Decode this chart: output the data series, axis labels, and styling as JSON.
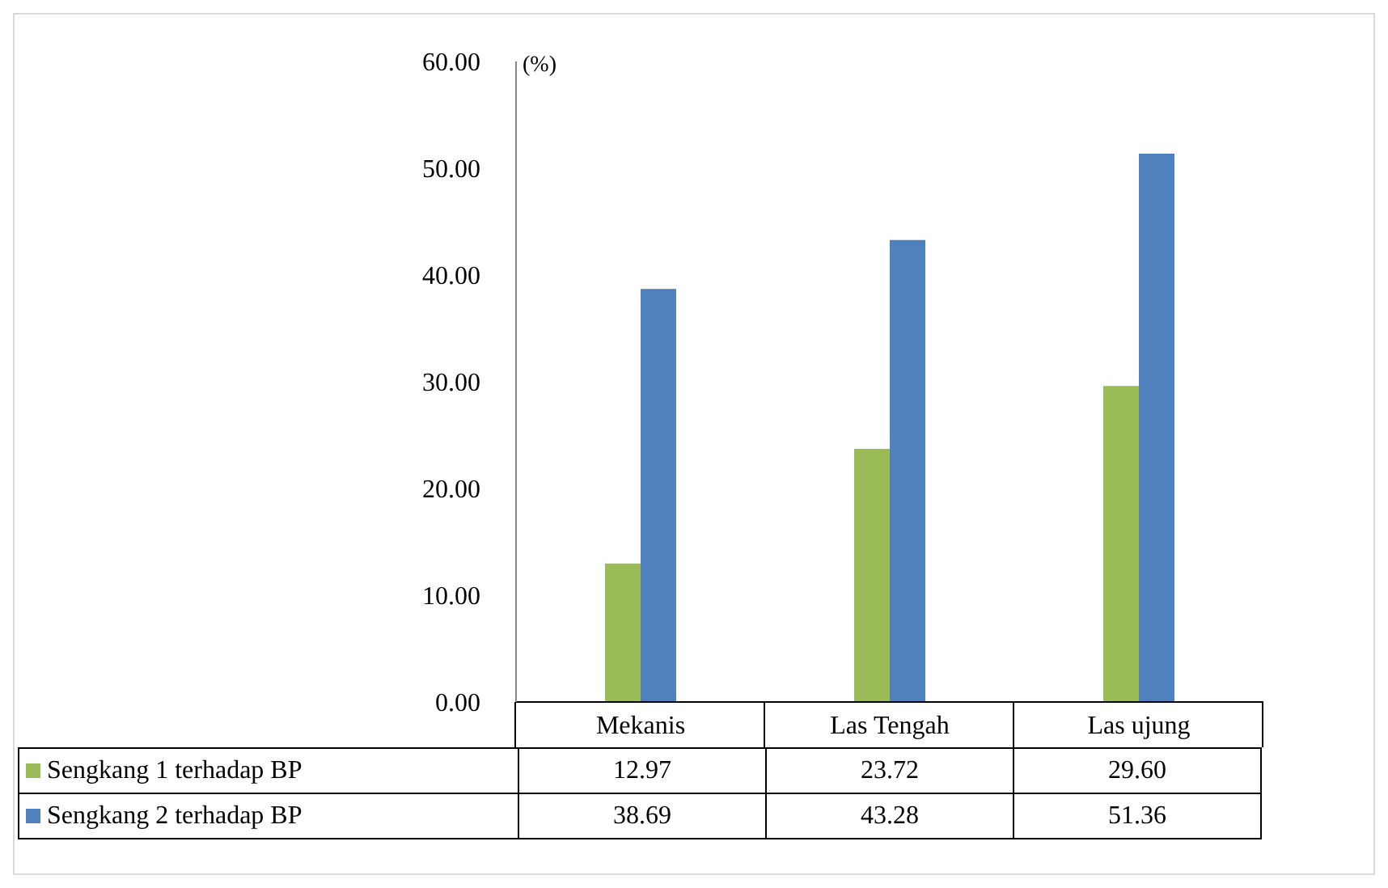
{
  "chart_data": {
    "type": "bar",
    "ylabel": "(%)",
    "categories": [
      "Mekanis",
      "Las Tengah",
      "Las ujung"
    ],
    "series": [
      {
        "name": "Sengkang 1 terhadap BP",
        "color": "#9bbb59",
        "values": [
          12.97,
          23.72,
          29.6
        ],
        "value_labels": [
          "12.97",
          "23.72",
          "29.60"
        ]
      },
      {
        "name": "Sengkang 2 terhadap BP",
        "color": "#4f81bd",
        "values": [
          38.69,
          43.28,
          51.36
        ],
        "value_labels": [
          "38.69",
          "43.28",
          "51.36"
        ]
      }
    ],
    "ylim": [
      0,
      60
    ],
    "yticks": [
      {
        "value": 0,
        "label": "0.00"
      },
      {
        "value": 10,
        "label": "10.00"
      },
      {
        "value": 20,
        "label": "20.00"
      },
      {
        "value": 30,
        "label": "30.00"
      },
      {
        "value": 40,
        "label": "40.00"
      },
      {
        "value": 50,
        "label": "50.00"
      },
      {
        "value": 60,
        "label": "60.00"
      }
    ],
    "legend": "bottom"
  }
}
